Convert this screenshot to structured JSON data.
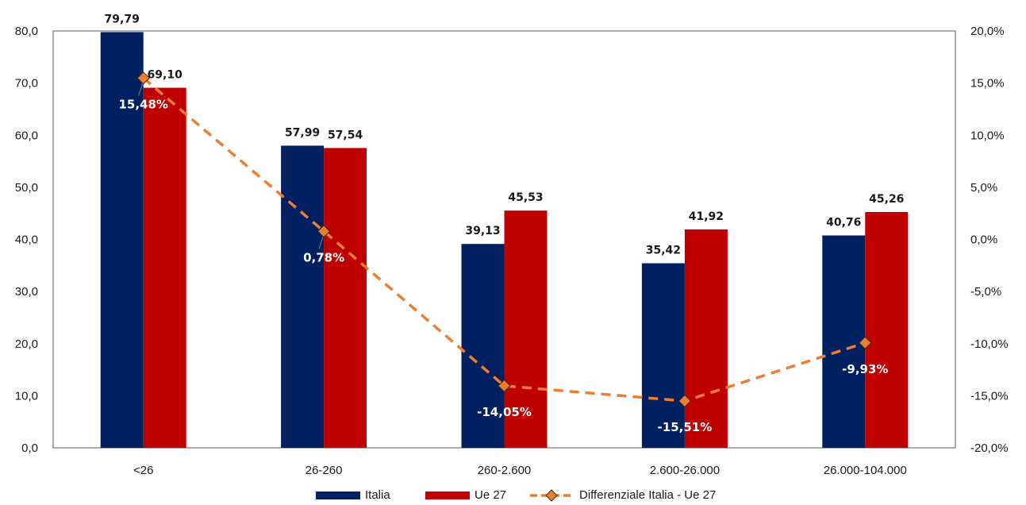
{
  "chart_data": {
    "type": "bar",
    "categories": [
      "<26",
      "26-260",
      "260-2.600",
      "2.600-26.000",
      "26.000-104.000"
    ],
    "series": [
      {
        "name": "Italia",
        "kind": "bar",
        "axis": "left",
        "color": "#002060",
        "values": [
          79.79,
          57.99,
          39.13,
          35.42,
          40.76
        ],
        "labels": [
          "79,79",
          "57,99",
          "39,13",
          "35,42",
          "40,76"
        ]
      },
      {
        "name": "Ue 27",
        "kind": "bar",
        "axis": "left",
        "color": "#C00000",
        "values": [
          69.1,
          57.54,
          45.53,
          41.92,
          45.26
        ],
        "labels": [
          "69,10",
          "57,54",
          "45,53",
          "41,92",
          "45,26"
        ]
      },
      {
        "name": "Differenziale Italia - Ue 27",
        "kind": "line",
        "axis": "right",
        "color": "#ED7D31",
        "values": [
          15.48,
          0.78,
          -14.05,
          -15.51,
          -9.93
        ],
        "labels": [
          "15,48%",
          "0,78%",
          "-14,05%",
          "-15,51%",
          "-9,93%"
        ]
      }
    ],
    "y_left": {
      "range": [
        0,
        80
      ],
      "ticks": [
        "0,0",
        "10,0",
        "20,0",
        "30,0",
        "40,0",
        "50,0",
        "60,0",
        "70,0",
        "80,0"
      ]
    },
    "y_right": {
      "range": [
        -20,
        20
      ],
      "ticks": [
        "-20,0%",
        "-15,0%",
        "-10,0%",
        "-5,0%",
        "0,0%",
        "5,0%",
        "10,0%",
        "15,0%",
        "20,0%"
      ]
    },
    "grid": false,
    "legend": "bottom",
    "title": "",
    "xlabel": "",
    "ylabel": ""
  }
}
